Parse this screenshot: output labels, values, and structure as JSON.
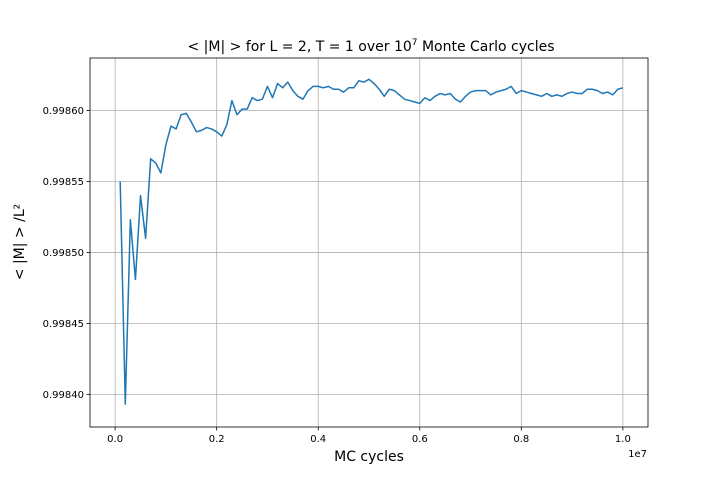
{
  "chart_data": {
    "type": "line",
    "title_parts": {
      "lead": "< |M| >  for L = 2, T = 1 over 10",
      "exponent": "7",
      "tail": " Monte Carlo cycles"
    },
    "xlabel": "MC cycles",
    "ylabel": "< |M| > /L²",
    "x_offset_text": "1e7",
    "xlim": [
      -0.0495,
      1.0495
    ],
    "ylim": [
      0.998377,
      0.998637
    ],
    "x_scale_multiplier": 10000000,
    "xticks": [
      0.0,
      0.2,
      0.4,
      0.6,
      0.8,
      1.0
    ],
    "xtick_labels": [
      "0.0",
      "0.2",
      "0.4",
      "0.6",
      "0.8",
      "1.0"
    ],
    "yticks": [
      0.9984,
      0.99845,
      0.9985,
      0.99855,
      0.9986
    ],
    "ytick_labels": [
      "0.99840",
      "0.99845",
      "0.99850",
      "0.99855",
      "0.99860"
    ],
    "grid": true,
    "series": [
      {
        "color": "#1f77b4",
        "x": [
          0.01,
          0.02,
          0.03,
          0.04,
          0.05,
          0.06,
          0.07,
          0.08,
          0.09,
          0.1,
          0.11,
          0.12,
          0.13,
          0.14,
          0.15,
          0.16,
          0.17,
          0.18,
          0.19,
          0.2,
          0.21,
          0.22,
          0.23,
          0.24,
          0.25,
          0.26,
          0.27,
          0.28,
          0.29,
          0.3,
          0.31,
          0.32,
          0.33,
          0.34,
          0.35,
          0.36,
          0.37,
          0.38,
          0.39,
          0.4,
          0.41,
          0.42,
          0.43,
          0.44,
          0.45,
          0.46,
          0.47,
          0.48,
          0.49,
          0.5,
          0.51,
          0.52,
          0.53,
          0.54,
          0.55,
          0.56,
          0.57,
          0.58,
          0.59,
          0.6,
          0.61,
          0.62,
          0.63,
          0.64,
          0.65,
          0.66,
          0.67,
          0.68,
          0.69,
          0.7,
          0.71,
          0.72,
          0.73,
          0.74,
          0.75,
          0.76,
          0.77,
          0.78,
          0.79,
          0.8,
          0.81,
          0.82,
          0.83,
          0.84,
          0.85,
          0.86,
          0.87,
          0.88,
          0.89,
          0.9,
          0.91,
          0.92,
          0.93,
          0.94,
          0.95,
          0.96,
          0.97,
          0.98,
          0.99,
          1.0
        ],
        "y": [
          0.99855,
          0.998393,
          0.998523,
          0.998481,
          0.99854,
          0.99851,
          0.998566,
          0.998563,
          0.998556,
          0.998576,
          0.998589,
          0.998587,
          0.998597,
          0.998598,
          0.998592,
          0.998585,
          0.998586,
          0.998588,
          0.998587,
          0.998585,
          0.998582,
          0.99859,
          0.998607,
          0.998597,
          0.998601,
          0.998601,
          0.998609,
          0.998607,
          0.998608,
          0.998617,
          0.998609,
          0.998619,
          0.998616,
          0.99862,
          0.998614,
          0.99861,
          0.998608,
          0.998614,
          0.998617,
          0.998617,
          0.998616,
          0.998617,
          0.998615,
          0.998615,
          0.998613,
          0.998616,
          0.998616,
          0.998621,
          0.99862,
          0.998622,
          0.998619,
          0.998615,
          0.99861,
          0.998615,
          0.998614,
          0.998611,
          0.998608,
          0.998607,
          0.998606,
          0.998605,
          0.998609,
          0.998607,
          0.99861,
          0.998612,
          0.998611,
          0.998612,
          0.998608,
          0.998606,
          0.99861,
          0.998613,
          0.998614,
          0.998614,
          0.998614,
          0.998611,
          0.998613,
          0.998614,
          0.998615,
          0.998617,
          0.998612,
          0.998614,
          0.998613,
          0.998612,
          0.998611,
          0.99861,
          0.998612,
          0.99861,
          0.998611,
          0.99861,
          0.998612,
          0.998613,
          0.998612,
          0.998612,
          0.998615,
          0.998615,
          0.998614,
          0.998612,
          0.998613,
          0.998611,
          0.998615,
          0.998616
        ]
      }
    ]
  }
}
